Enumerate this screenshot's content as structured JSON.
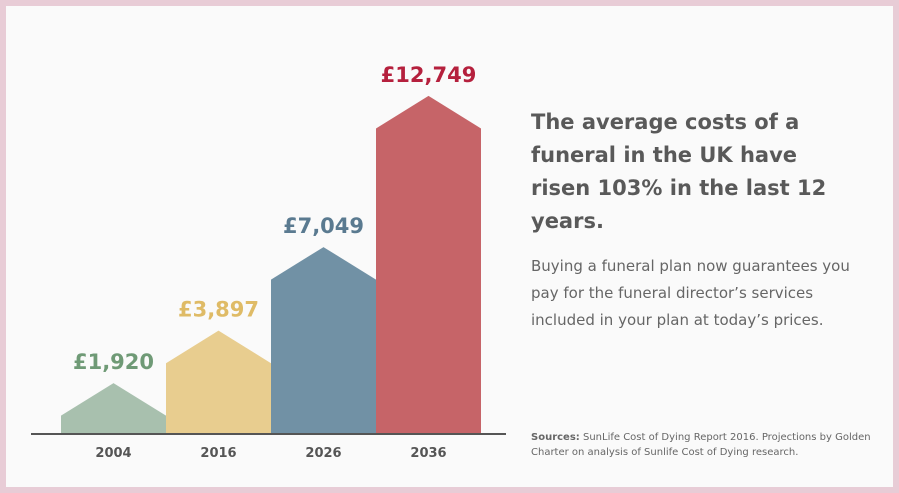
{
  "colors": {
    "frame": "#e8ccd6",
    "background": "#fafafa",
    "baseline": "#555555"
  },
  "chart_data": {
    "type": "bar",
    "categories": [
      "2004",
      "2016",
      "2026",
      "2036"
    ],
    "values": [
      1920,
      3897,
      7049,
      12749
    ],
    "value_labels": [
      "£1,920",
      "£3,897",
      "£7,049",
      "£12,749"
    ],
    "colors": [
      "#a8c0ae",
      "#e8cd8f",
      "#7191a5",
      "#c66468"
    ],
    "label_colors": [
      "#6f9a76",
      "#dfbb66",
      "#5a7a90",
      "#b5203d"
    ],
    "ylim": [
      0,
      13500
    ],
    "grid": false,
    "legend": false
  },
  "headline": "The average costs of a funeral in the UK have risen 103% in the last 12 years.",
  "body": "Buying a funeral plan now guarantees you pay for the funeral director’s services included in your plan at today’s prices.",
  "sources": {
    "label": "Sources:",
    "text": " SunLife Cost of Dying Report 2016. Projections by Golden Charter on analysis of Sunlife Cost of Dying research."
  }
}
